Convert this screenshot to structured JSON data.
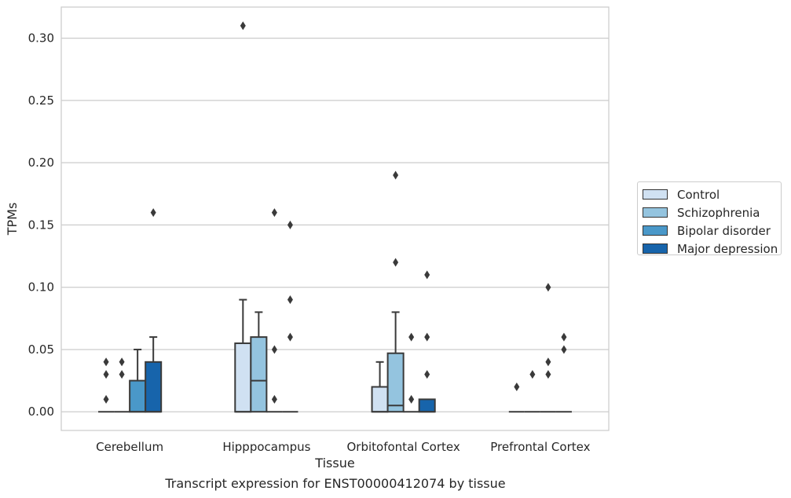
{
  "chart_data": {
    "type": "box",
    "title": "",
    "caption": "Transcript expression for ENST00000412074 by tissue",
    "xlabel": "Tissue",
    "ylabel": "TPMs",
    "ylim": [
      -0.015,
      0.325
    ],
    "yticks": [
      "0.00",
      "0.05",
      "0.10",
      "0.15",
      "0.20",
      "0.25",
      "0.30"
    ],
    "grid": true,
    "legend_position": "right",
    "categories": [
      "Cerebellum",
      "Hipppocampus",
      "Orbitofontal Cortex",
      "Prefrontal Cortex"
    ],
    "series": [
      {
        "name": "Control",
        "color": "#d0e1f2",
        "boxes": [
          {
            "q1": 0,
            "median": 0,
            "q3": 0,
            "whisker_low": 0,
            "whisker_high": 0,
            "outliers": [
              0.01,
              0.03,
              0.04
            ]
          },
          {
            "q1": 0,
            "median": 0,
            "q3": 0.055,
            "whisker_low": 0,
            "whisker_high": 0.09,
            "outliers": [
              0.31
            ]
          },
          {
            "q1": 0,
            "median": 0,
            "q3": 0.02,
            "whisker_low": 0,
            "whisker_high": 0.04,
            "outliers": []
          },
          {
            "q1": 0,
            "median": 0,
            "q3": 0,
            "whisker_low": 0,
            "whisker_high": 0,
            "outliers": [
              0.02
            ]
          }
        ]
      },
      {
        "name": "Schizophrenia",
        "color": "#94c4df",
        "boxes": [
          {
            "q1": 0,
            "median": 0,
            "q3": 0,
            "whisker_low": 0,
            "whisker_high": 0,
            "outliers": [
              0.03,
              0.04
            ]
          },
          {
            "q1": 0,
            "median": 0.025,
            "q3": 0.06,
            "whisker_low": 0,
            "whisker_high": 0.08,
            "outliers": []
          },
          {
            "q1": 0,
            "median": 0.005,
            "q3": 0.047,
            "whisker_low": 0,
            "whisker_high": 0.08,
            "outliers": [
              0.12,
              0.19
            ]
          },
          {
            "q1": 0,
            "median": 0,
            "q3": 0,
            "whisker_low": 0,
            "whisker_high": 0,
            "outliers": [
              0.03
            ]
          }
        ]
      },
      {
        "name": "Bipolar disorder",
        "color": "#4a98c9",
        "boxes": [
          {
            "q1": 0,
            "median": 0,
            "q3": 0.025,
            "whisker_low": 0,
            "whisker_high": 0.05,
            "outliers": []
          },
          {
            "q1": 0,
            "median": 0,
            "q3": 0,
            "whisker_low": 0,
            "whisker_high": 0,
            "outliers": [
              0.01,
              0.05,
              0.16
            ]
          },
          {
            "q1": 0,
            "median": 0,
            "q3": 0,
            "whisker_low": 0,
            "whisker_high": 0,
            "outliers": [
              0.01,
              0.06
            ]
          },
          {
            "q1": 0,
            "median": 0,
            "q3": 0,
            "whisker_low": 0,
            "whisker_high": 0,
            "outliers": [
              0.03,
              0.04,
              0.1
            ]
          }
        ]
      },
      {
        "name": "Major depression",
        "color": "#1764ab",
        "boxes": [
          {
            "q1": 0,
            "median": 0,
            "q3": 0.04,
            "whisker_low": 0,
            "whisker_high": 0.06,
            "outliers": [
              0.16
            ]
          },
          {
            "q1": 0,
            "median": 0,
            "q3": 0,
            "whisker_low": 0,
            "whisker_high": 0,
            "outliers": [
              0.06,
              0.09,
              0.15
            ]
          },
          {
            "q1": 0,
            "median": 0,
            "q3": 0.01,
            "whisker_low": 0,
            "whisker_high": 0.01,
            "outliers": [
              0.03,
              0.06,
              0.11
            ]
          },
          {
            "q1": 0,
            "median": 0,
            "q3": 0,
            "whisker_low": 0,
            "whisker_high": 0,
            "outliers": [
              0.05,
              0.06
            ]
          }
        ]
      }
    ]
  }
}
